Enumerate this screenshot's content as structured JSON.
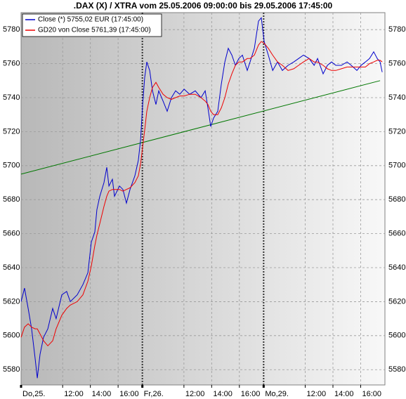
{
  "chart_data": {
    "type": "line",
    "title": ".DAX (X) / XTRA vom 25.05.2006 09:00:00 bis 29.05.2006 17:45:00",
    "x": [
      0,
      0.25,
      0.51,
      0.76,
      1.01,
      1.17,
      1.37,
      1.62,
      1.93,
      2.28,
      2.53,
      2.94,
      3.29,
      3.55,
      4.05,
      4.46,
      4.82,
      5.07,
      5.32,
      5.47,
      5.68,
      5.98,
      6.18,
      6.34,
      6.59,
      6.74,
      7.1,
      7.35,
      7.6,
      7.86,
      8.21,
      8.46,
      8.62,
      8.77,
      8.92,
      9.07,
      9.28,
      9.48,
      9.73,
      9.93,
      10.24,
      10.54,
      10.85,
      11.15,
      11.45,
      11.76,
      12.16,
      12.57,
      12.98,
      13.28,
      13.48,
      13.68,
      13.89,
      14.19,
      14.45,
      14.7,
      14.95,
      15.21,
      15.46,
      15.71,
      15.97,
      16.32,
      16.52,
      16.83,
      17.13,
      17.33,
      17.54,
      17.84,
      18.15,
      18.5,
      18.85,
      19.26,
      19.67,
      20.02,
      20.37,
      20.78,
      21.14,
      21.39,
      21.79,
      22.1,
      22.4,
      22.71,
      23.11,
      23.52,
      23.82,
      24.23,
      24.53,
      24.84,
      25.14,
      25.44,
      25.7,
      25.9,
      26.05
    ],
    "series": [
      {
        "name": "Close (*) 5755,02 EUR (17:45:00)",
        "color": "#0000cc",
        "values": [
          5620,
          5628,
          5616,
          5604,
          5587,
          5575,
          5589,
          5599,
          5604,
          5616,
          5610,
          5624,
          5626,
          5620,
          5624,
          5630,
          5637,
          5655,
          5661,
          5674,
          5682,
          5690,
          5699,
          5688,
          5692,
          5682,
          5688,
          5686,
          5678,
          5686,
          5694,
          5703,
          5715,
          5736,
          5752,
          5761,
          5756,
          5744,
          5736,
          5744,
          5738,
          5732,
          5740,
          5744,
          5742,
          5745,
          5742,
          5744,
          5740,
          5744,
          5734,
          5723,
          5728,
          5732,
          5748,
          5761,
          5769,
          5765,
          5759,
          5763,
          5765,
          5756,
          5761,
          5769,
          5785,
          5787,
          5773,
          5765,
          5756,
          5761,
          5756,
          5759,
          5761,
          5763,
          5765,
          5763,
          5759,
          5763,
          5754,
          5759,
          5761,
          5759,
          5759,
          5761,
          5759,
          5756,
          5759,
          5761,
          5763,
          5767,
          5763,
          5761,
          5755
        ]
      },
      {
        "name": "GD20 von Close 5761,39 (17:45:00)",
        "color": "#ee0000",
        "values": [
          5599,
          5605,
          5607,
          5605,
          5604,
          5604,
          5601,
          5597,
          5594,
          5597,
          5604,
          5612,
          5616,
          5618,
          5620,
          5624,
          5632,
          5641,
          5653,
          5659,
          5666,
          5676,
          5682,
          5685,
          5686,
          5686,
          5686,
          5685,
          5686,
          5687,
          5690,
          5694,
          5701,
          5711,
          5721,
          5732,
          5740,
          5746,
          5749,
          5746,
          5742,
          5740,
          5739,
          5740,
          5741,
          5741,
          5742,
          5742,
          5740,
          5738,
          5736,
          5732,
          5730,
          5730,
          5734,
          5740,
          5748,
          5754,
          5759,
          5761,
          5761,
          5763,
          5763,
          5765,
          5771,
          5773,
          5772,
          5769,
          5765,
          5761,
          5759,
          5756,
          5757,
          5759,
          5761,
          5763,
          5761,
          5761,
          5759,
          5757,
          5756,
          5756,
          5757,
          5758,
          5758,
          5758,
          5758,
          5758,
          5760,
          5761,
          5762,
          5762,
          5761
        ]
      }
    ],
    "trendline": {
      "x": [
        0,
        25.9
      ],
      "values": [
        5695,
        5750
      ],
      "color": "#007700"
    },
    "xlim": [
      0,
      26.25
    ],
    "xticks": [
      {
        "value": 0,
        "label": "Do,25."
      },
      {
        "value": 3,
        "label": "12:00"
      },
      {
        "value": 5,
        "label": "14:00"
      },
      {
        "value": 7,
        "label": "16:00"
      },
      {
        "value": 8.75,
        "label": "Fr,26."
      },
      {
        "value": 11.75,
        "label": "12:00"
      },
      {
        "value": 13.75,
        "label": "14:00"
      },
      {
        "value": 15.75,
        "label": "16:00"
      },
      {
        "value": 17.5,
        "label": "Mo,29."
      },
      {
        "value": 20.5,
        "label": "12:00"
      },
      {
        "value": 22.5,
        "label": "14:00"
      },
      {
        "value": 24.5,
        "label": "16:00"
      }
    ],
    "ylim": [
      5571,
      5790
    ],
    "yticks": [
      5580,
      5600,
      5620,
      5640,
      5660,
      5680,
      5700,
      5720,
      5740,
      5760,
      5780
    ],
    "grid": true
  }
}
